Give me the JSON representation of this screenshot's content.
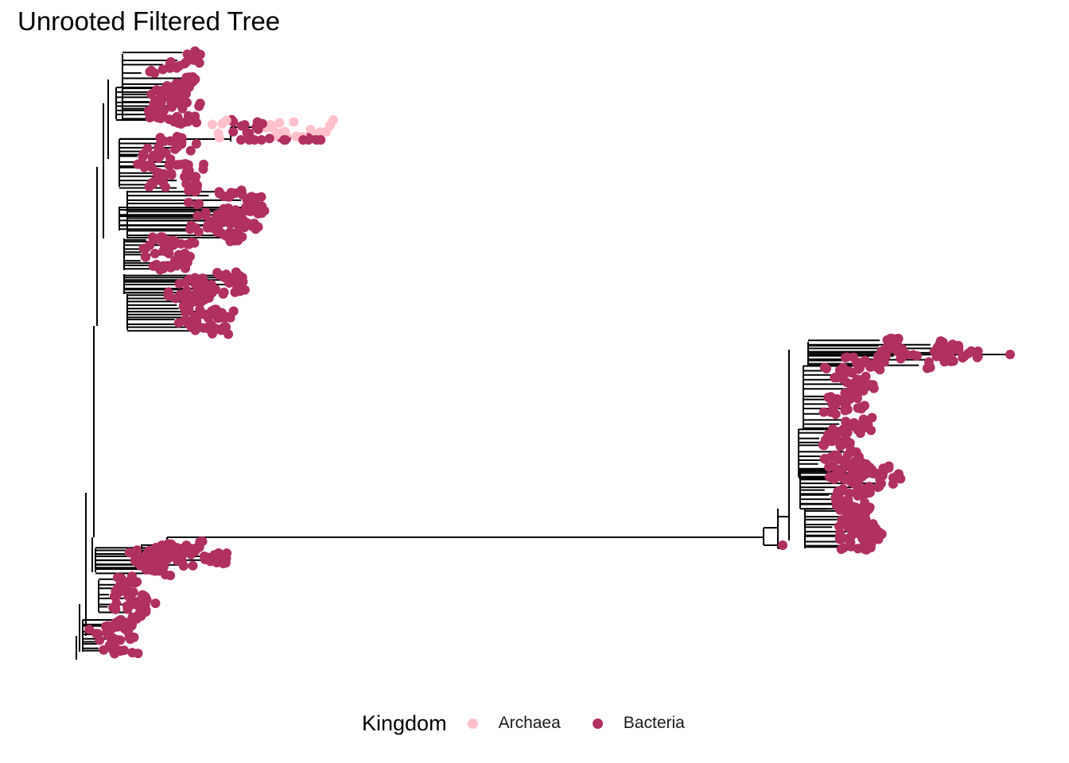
{
  "title": "Unrooted Filtered Tree",
  "legend": {
    "title": "Kingdom",
    "items": [
      {
        "label": "Archaea",
        "color": "#FFC0CB"
      },
      {
        "label": "Bacteria",
        "color": "#B03060"
      }
    ]
  },
  "colors": {
    "branch": "#000000",
    "background": "#ffffff"
  }
}
